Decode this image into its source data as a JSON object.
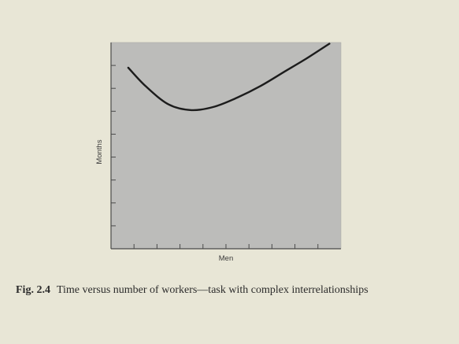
{
  "caption": {
    "label": "Fig. 2.4",
    "text": "Time versus number of workers—task with complex interrelationships"
  },
  "colors": {
    "page": "#e8e6d6",
    "plot_fill": "#bcbcba",
    "axis": "#4a4a4a",
    "curve": "#1c1c1c"
  },
  "chart_data": {
    "type": "line",
    "title": "",
    "xlabel": "Men",
    "ylabel": "Months",
    "xlim": [
      0,
      10
    ],
    "ylim": [
      0,
      9
    ],
    "x_ticks": [
      1,
      2,
      3,
      4,
      5,
      6,
      7,
      8,
      9
    ],
    "y_ticks": [
      1,
      2,
      3,
      4,
      5,
      6,
      7,
      8
    ],
    "tick_labels_shown": false,
    "grid": false,
    "series": [
      {
        "values": [
          {
            "x": 0.75,
            "y": 7.9
          },
          {
            "x": 1.5,
            "y": 7.1
          },
          {
            "x": 2.5,
            "y": 6.3
          },
          {
            "x": 3.5,
            "y": 6.05
          },
          {
            "x": 4.5,
            "y": 6.2
          },
          {
            "x": 5.5,
            "y": 6.6
          },
          {
            "x": 6.5,
            "y": 7.1
          },
          {
            "x": 7.5,
            "y": 7.7
          },
          {
            "x": 8.5,
            "y": 8.3
          },
          {
            "x": 9.5,
            "y": 8.95
          }
        ]
      }
    ]
  }
}
